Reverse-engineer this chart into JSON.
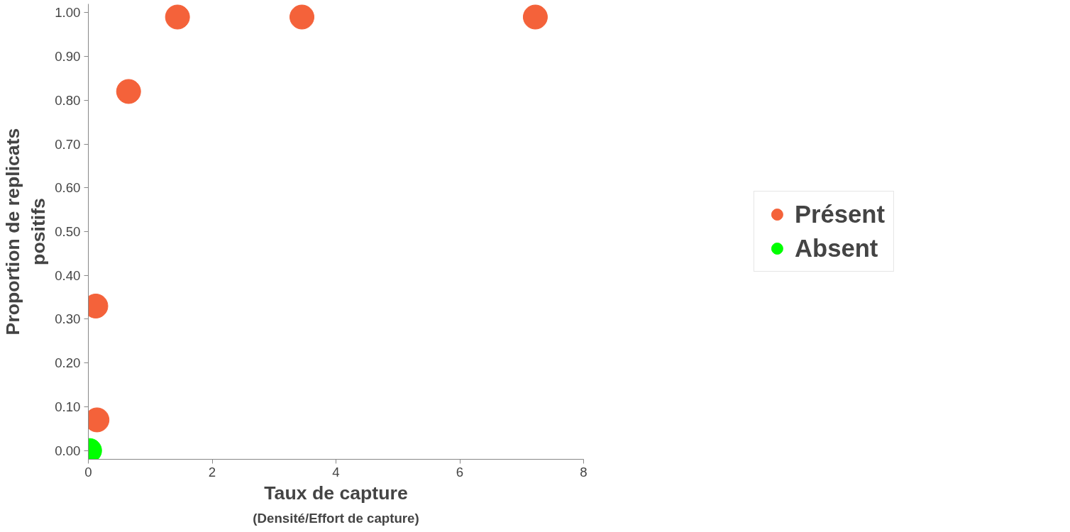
{
  "chart_data": {
    "type": "scatter",
    "xlabel": "Taux de capture",
    "ylabel": "Proportion de replicats positifs",
    "annotations": [
      "(Densité/Effort de capture)"
    ],
    "series": [
      {
        "name": "Présent",
        "color": "#f4623a",
        "x": [
          0.12,
          0.14,
          0.65,
          1.44,
          3.45,
          7.22
        ],
        "values": [
          0.33,
          0.07,
          0.82,
          0.99,
          0.99,
          0.99
        ]
      },
      {
        "name": "Absent",
        "color": "#00ff00",
        "x": [
          0.02
        ],
        "values": [
          0.0
        ]
      }
    ],
    "xlim": [
      0,
      8
    ],
    "xticks": [
      0,
      2,
      4,
      6,
      8
    ],
    "ylim": [
      -0.02,
      1.02
    ],
    "yticks": [
      {
        "value": 0,
        "label": "0.00"
      },
      {
        "value": 0.1,
        "label": "0.10"
      },
      {
        "value": 0.2,
        "label": "0.20"
      },
      {
        "value": 0.3,
        "label": "0.30"
      },
      {
        "value": 0.4,
        "label": "0.40"
      },
      {
        "value": 0.5,
        "label": "0.50"
      },
      {
        "value": 0.6,
        "label": "0.60"
      },
      {
        "value": 0.7,
        "label": "0.70"
      },
      {
        "value": 0.8,
        "label": "0.80"
      },
      {
        "value": 0.9,
        "label": "0.90"
      },
      {
        "value": 1.0,
        "label": "1.00"
      }
    ],
    "grid": false,
    "legend": "right",
    "marker": "circle"
  }
}
